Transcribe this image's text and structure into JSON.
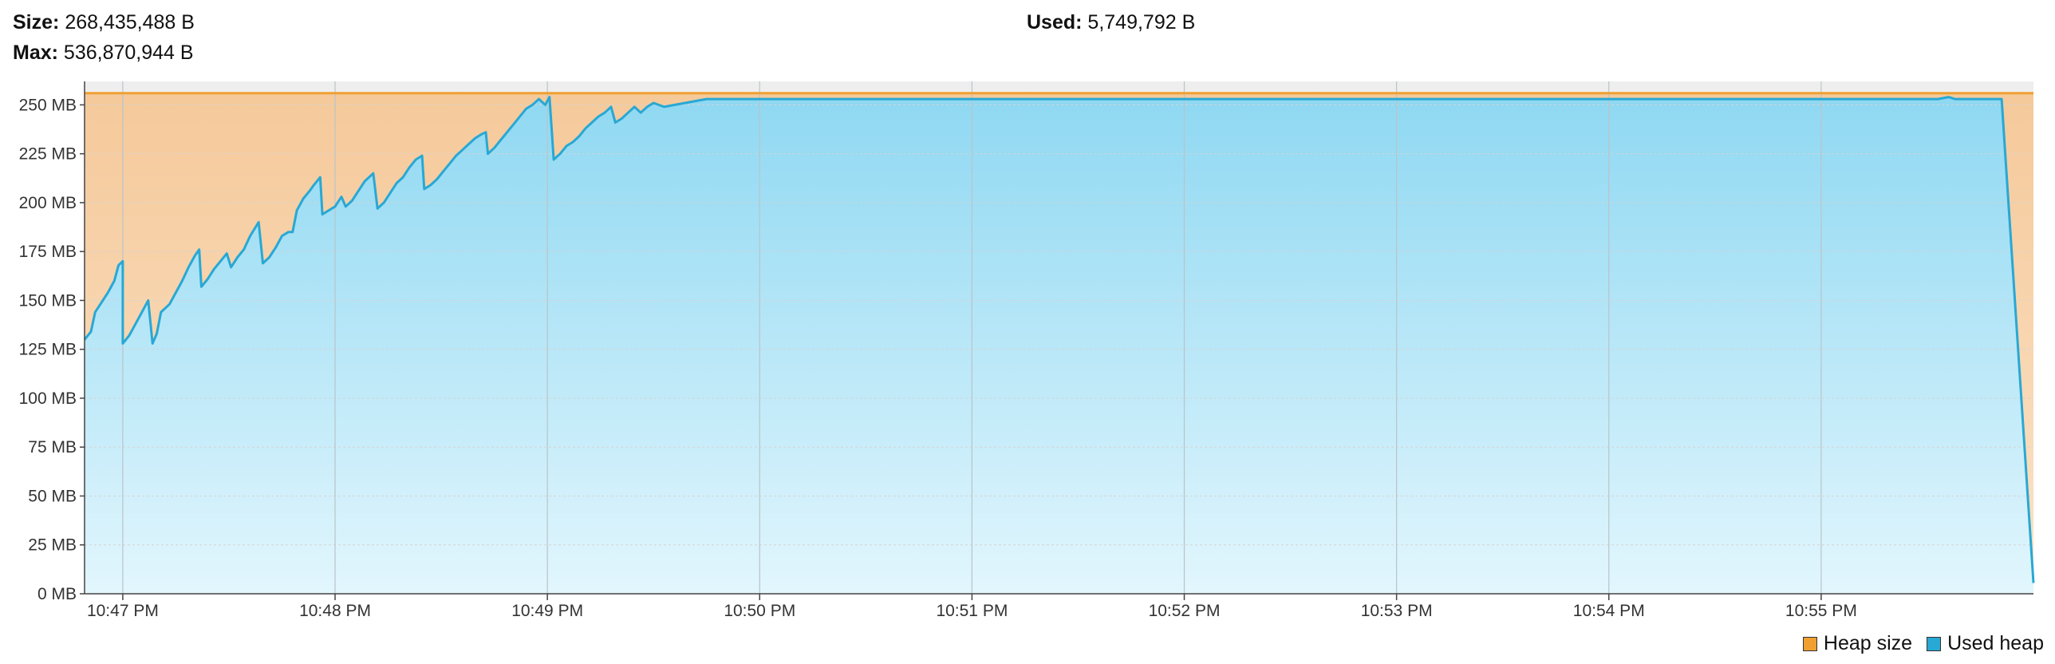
{
  "header": {
    "size_label": "Size:",
    "size_value": "268,435,488 B",
    "max_label": "Max:",
    "max_value": "536,870,944 B",
    "used_label": "Used:",
    "used_value": "5,749,792 B"
  },
  "colors": {
    "heap_size": "#f0a030",
    "used_heap": "#28a8d4",
    "heap_fill_top": "#f5c99a",
    "used_fill_top": "#8fd8f2",
    "used_fill_bottom": "#e2f6fd",
    "plot_band": "#eeeeee"
  },
  "chart_data": {
    "type": "area",
    "ylim": [
      0,
      262
    ],
    "y_unit": "MB",
    "y_ticks": [
      0,
      25,
      50,
      75,
      100,
      125,
      150,
      175,
      200,
      225,
      250
    ],
    "y_tick_labels": [
      "0 MB",
      "25 MB",
      "50 MB",
      "75 MB",
      "100 MB",
      "125 MB",
      "150 MB",
      "175 MB",
      "200 MB",
      "225 MB",
      "250 MB"
    ],
    "x_ticks": [
      "10:47 PM",
      "10:48 PM",
      "10:49 PM",
      "10:50 PM",
      "10:51 PM",
      "10:52 PM",
      "10:53 PM",
      "10:54 PM",
      "10:55 PM"
    ],
    "x_range_minutes": [
      -0.18,
      9.0
    ],
    "legend": [
      "Heap size",
      "Used heap"
    ],
    "legend_position": "bottom-right",
    "grid": true,
    "series": [
      {
        "name": "Heap size",
        "points": [
          [
            -0.18,
            256
          ],
          [
            9.0,
            256
          ]
        ]
      },
      {
        "name": "Used heap",
        "points": [
          [
            -0.18,
            130
          ],
          [
            -0.15,
            134
          ],
          [
            -0.13,
            144
          ],
          [
            -0.1,
            149
          ],
          [
            -0.07,
            154
          ],
          [
            -0.04,
            160
          ],
          [
            -0.02,
            168
          ],
          [
            0.0,
            170
          ],
          [
            -0.0,
            170
          ],
          [
            0.0,
            128
          ],
          [
            0.03,
            132
          ],
          [
            0.06,
            138
          ],
          [
            0.09,
            144
          ],
          [
            0.12,
            150
          ],
          [
            0.14,
            128
          ],
          [
            0.16,
            133
          ],
          [
            0.18,
            144
          ],
          [
            0.22,
            148
          ],
          [
            0.25,
            154
          ],
          [
            0.28,
            160
          ],
          [
            0.31,
            167
          ],
          [
            0.34,
            173
          ],
          [
            0.36,
            176
          ],
          [
            0.37,
            157
          ],
          [
            0.4,
            161
          ],
          [
            0.43,
            166
          ],
          [
            0.46,
            170
          ],
          [
            0.49,
            174
          ],
          [
            0.51,
            167
          ],
          [
            0.54,
            172
          ],
          [
            0.57,
            176
          ],
          [
            0.6,
            183
          ],
          [
            0.64,
            190
          ],
          [
            0.66,
            169
          ],
          [
            0.69,
            172
          ],
          [
            0.72,
            177
          ],
          [
            0.75,
            183
          ],
          [
            0.78,
            185
          ],
          [
            0.8,
            185
          ],
          [
            0.82,
            196
          ],
          [
            0.85,
            202
          ],
          [
            0.88,
            206
          ],
          [
            0.9,
            209
          ],
          [
            0.93,
            213
          ],
          [
            0.94,
            194
          ],
          [
            0.97,
            196
          ],
          [
            1.0,
            198
          ],
          [
            1.03,
            203
          ],
          [
            1.05,
            198
          ],
          [
            1.08,
            201
          ],
          [
            1.11,
            206
          ],
          [
            1.14,
            211
          ],
          [
            1.16,
            213
          ],
          [
            1.18,
            215
          ],
          [
            1.2,
            197
          ],
          [
            1.23,
            200
          ],
          [
            1.26,
            205
          ],
          [
            1.29,
            210
          ],
          [
            1.32,
            213
          ],
          [
            1.35,
            218
          ],
          [
            1.38,
            222
          ],
          [
            1.41,
            224
          ],
          [
            1.42,
            207
          ],
          [
            1.45,
            209
          ],
          [
            1.48,
            212
          ],
          [
            1.51,
            216
          ],
          [
            1.54,
            220
          ],
          [
            1.57,
            224
          ],
          [
            1.6,
            227
          ],
          [
            1.63,
            230
          ],
          [
            1.66,
            233
          ],
          [
            1.69,
            235
          ],
          [
            1.71,
            236
          ],
          [
            1.72,
            225
          ],
          [
            1.75,
            228
          ],
          [
            1.78,
            232
          ],
          [
            1.81,
            236
          ],
          [
            1.84,
            240
          ],
          [
            1.87,
            244
          ],
          [
            1.9,
            248
          ],
          [
            1.93,
            250
          ],
          [
            1.96,
            253
          ],
          [
            1.99,
            250
          ],
          [
            2.01,
            254
          ],
          [
            2.03,
            222
          ],
          [
            2.06,
            225
          ],
          [
            2.09,
            229
          ],
          [
            2.12,
            231
          ],
          [
            2.15,
            234
          ],
          [
            2.18,
            238
          ],
          [
            2.21,
            241
          ],
          [
            2.24,
            244
          ],
          [
            2.27,
            246
          ],
          [
            2.3,
            249
          ],
          [
            2.32,
            241
          ],
          [
            2.35,
            243
          ],
          [
            2.38,
            246
          ],
          [
            2.41,
            249
          ],
          [
            2.44,
            246
          ],
          [
            2.47,
            249
          ],
          [
            2.5,
            251
          ],
          [
            2.55,
            249
          ],
          [
            2.6,
            250
          ],
          [
            2.65,
            251
          ],
          [
            2.7,
            252
          ],
          [
            2.75,
            253
          ],
          [
            3.0,
            253
          ],
          [
            4.0,
            253
          ],
          [
            5.0,
            253
          ],
          [
            6.0,
            253
          ],
          [
            7.0,
            253
          ],
          [
            8.0,
            253
          ],
          [
            8.55,
            253
          ],
          [
            8.6,
            254
          ],
          [
            8.63,
            253
          ],
          [
            8.85,
            253
          ],
          [
            9.0,
            5.5
          ]
        ]
      }
    ]
  }
}
